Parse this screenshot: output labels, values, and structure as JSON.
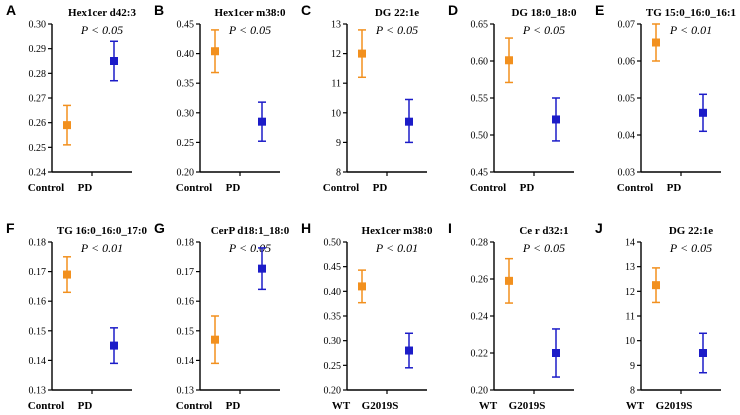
{
  "colors": {
    "control": "#f2901e",
    "pd": "#1c1cc8",
    "axis": "#000000"
  },
  "chart_data": [
    {
      "type": "scatter",
      "letter": "A",
      "title": "Hex1cer d42:3",
      "pvalue": "P < 0.05",
      "categories": [
        "Control",
        "PD"
      ],
      "ylim": [
        0.24,
        0.3
      ],
      "yticks": [
        "0.24",
        "0.25",
        "0.26",
        "0.27",
        "0.28",
        "0.29",
        "0.30"
      ],
      "values": [
        0.259,
        0.285
      ],
      "err_low": [
        0.251,
        0.277
      ],
      "err_high": [
        0.267,
        0.293
      ]
    },
    {
      "type": "scatter",
      "letter": "B",
      "title": "Hex1cer m38:0",
      "pvalue": "P < 0.05",
      "categories": [
        "Control",
        "PD"
      ],
      "ylim": [
        0.2,
        0.45
      ],
      "yticks": [
        "0.20",
        "0.25",
        "0.30",
        "0.35",
        "0.40",
        "0.45"
      ],
      "values": [
        0.404,
        0.285
      ],
      "err_low": [
        0.368,
        0.252
      ],
      "err_high": [
        0.44,
        0.318
      ]
    },
    {
      "type": "scatter",
      "letter": "C",
      "title": "DG 22:1e",
      "pvalue": "P < 0.05",
      "categories": [
        "Control",
        "PD"
      ],
      "ylim": [
        8,
        13
      ],
      "yticks": [
        "8",
        "9",
        "10",
        "11",
        "12",
        "13"
      ],
      "values": [
        12.0,
        9.7
      ],
      "err_low": [
        11.2,
        9.0
      ],
      "err_high": [
        12.8,
        10.45
      ]
    },
    {
      "type": "scatter",
      "letter": "D",
      "title": "DG 18:0_18:0",
      "pvalue": "P < 0.05",
      "categories": [
        "Control",
        "PD"
      ],
      "ylim": [
        0.45,
        0.65
      ],
      "yticks": [
        "0.45",
        "0.50",
        "0.55",
        "0.60",
        "0.65"
      ],
      "values": [
        0.601,
        0.521
      ],
      "err_low": [
        0.571,
        0.492
      ],
      "err_high": [
        0.631,
        0.55
      ]
    },
    {
      "type": "scatter",
      "letter": "E",
      "title": "TG 15:0_16:0_16:1",
      "pvalue": "P < 0.01",
      "categories": [
        "Control",
        "PD"
      ],
      "ylim": [
        0.03,
        0.07
      ],
      "yticks": [
        "0.03",
        "0.04",
        "0.05",
        "0.06",
        "0.07"
      ],
      "values": [
        0.065,
        0.046
      ],
      "err_low": [
        0.06,
        0.041
      ],
      "err_high": [
        0.07,
        0.051
      ]
    },
    {
      "type": "scatter",
      "letter": "F",
      "title": "TG 16:0_16:0_17:0",
      "pvalue": "P < 0.01",
      "categories": [
        "Control",
        "PD"
      ],
      "ylim": [
        0.13,
        0.18
      ],
      "yticks": [
        "0.13",
        "0.14",
        "0.15",
        "0.16",
        "0.17",
        "0.18"
      ],
      "values": [
        0.169,
        0.145
      ],
      "err_low": [
        0.163,
        0.139
      ],
      "err_high": [
        0.175,
        0.151
      ]
    },
    {
      "type": "scatter",
      "letter": "G",
      "title": "CerP d18:1_18:0",
      "pvalue": "P < 0.05",
      "categories": [
        "Control",
        "PD"
      ],
      "ylim": [
        0.13,
        0.18
      ],
      "yticks": [
        "0.13",
        "0.14",
        "0.15",
        "0.16",
        "0.17",
        "0.18"
      ],
      "values": [
        0.147,
        0.171
      ],
      "err_low": [
        0.139,
        0.164
      ],
      "err_high": [
        0.155,
        0.178
      ]
    },
    {
      "type": "scatter",
      "letter": "H",
      "title": "Hex1cer m38:0",
      "pvalue": "P < 0.01",
      "categories": [
        "WT",
        "G2019S"
      ],
      "ylim": [
        0.2,
        0.5
      ],
      "yticks": [
        "0.20",
        "0.25",
        "0.30",
        "0.35",
        "0.40",
        "0.45",
        "0.50"
      ],
      "values": [
        0.41,
        0.28
      ],
      "err_low": [
        0.377,
        0.245
      ],
      "err_high": [
        0.443,
        0.315
      ]
    },
    {
      "type": "scatter",
      "letter": "I",
      "title": "Ce r d32:1",
      "pvalue": "P < 0.05",
      "categories": [
        "WT",
        "G2019S"
      ],
      "ylim": [
        0.2,
        0.28
      ],
      "yticks": [
        "0.20",
        "0.22",
        "0.24",
        "0.26",
        "0.28"
      ],
      "values": [
        0.259,
        0.22
      ],
      "err_low": [
        0.247,
        0.207
      ],
      "err_high": [
        0.271,
        0.233
      ]
    },
    {
      "type": "scatter",
      "letter": "J",
      "title": "DG 22:1e",
      "pvalue": "P < 0.05",
      "categories": [
        "WT",
        "G2019S"
      ],
      "ylim": [
        8,
        14
      ],
      "yticks": [
        "8",
        "9",
        "10",
        "11",
        "12",
        "13",
        "14"
      ],
      "values": [
        12.25,
        9.5
      ],
      "err_low": [
        11.55,
        8.7
      ],
      "err_high": [
        12.95,
        10.3
      ]
    }
  ]
}
